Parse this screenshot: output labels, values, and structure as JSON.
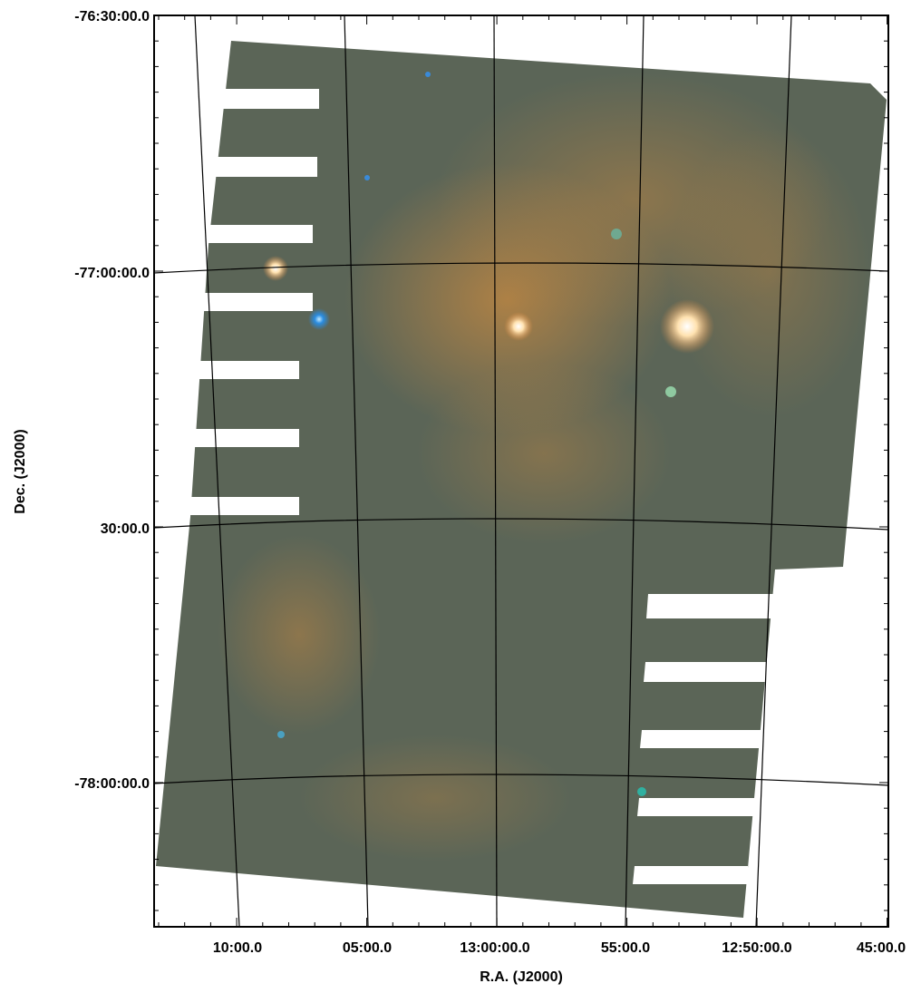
{
  "x_axis": {
    "label": "R.A. (J2000)",
    "ticks": [
      "10:00.0",
      "05:00.0",
      "13:00:00.0",
      "55:00.0",
      "12:50:00.0",
      "45:00.0"
    ]
  },
  "y_axis": {
    "label": "Dec. (J2000)",
    "ticks": [
      "-76:30:00.0",
      "-77:00:00.0",
      "30:00.0",
      "-78:00:00.0"
    ]
  }
}
